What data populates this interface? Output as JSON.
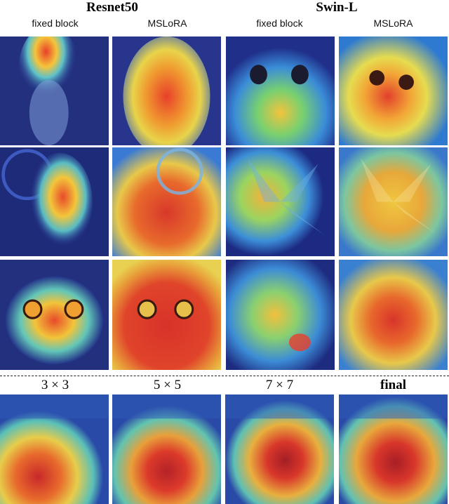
{
  "header": {
    "group_left": "Resnet50",
    "group_right": "Swin-L",
    "col_labels": [
      "fixed block",
      "MSLoRA",
      "fixed block",
      "MSLoRA"
    ]
  },
  "grid": {
    "rows": [
      [
        "dog-cam",
        "dog-cam",
        "cat-cam",
        "cat-cam"
      ],
      [
        "dog-cam",
        "dog-cam",
        "flower-cam",
        "flower-cam"
      ],
      [
        "cat-cam",
        "cat-cam",
        "puppy-cam",
        "puppy-cam"
      ]
    ]
  },
  "scales": {
    "labels": [
      "3 × 3",
      "5 × 5",
      "7 × 7",
      "final"
    ]
  },
  "colors": {
    "background": "#ffffff",
    "divider": "#222222"
  }
}
